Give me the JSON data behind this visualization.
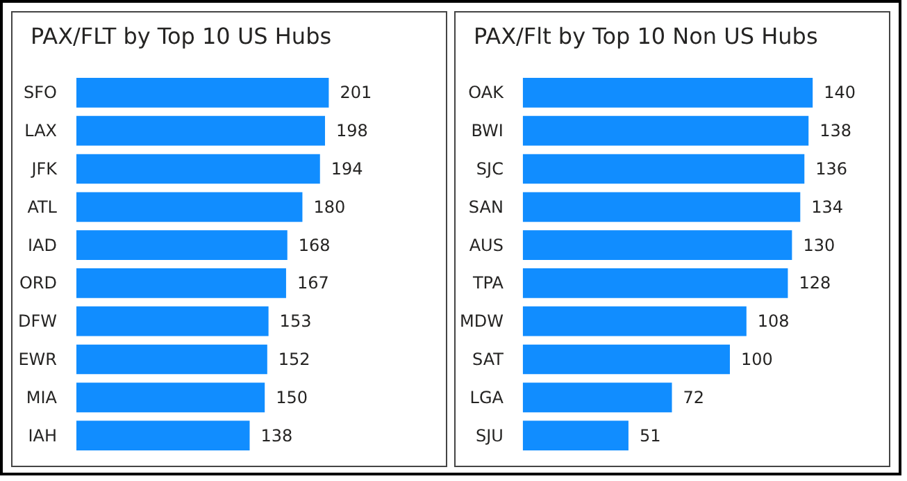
{
  "chart_data": [
    {
      "type": "bar",
      "orientation": "horizontal",
      "title": "PAX/FLT by Top 10 US Hubs",
      "categories": [
        "SFO",
        "LAX",
        "JFK",
        "ATL",
        "IAD",
        "ORD",
        "DFW",
        "EWR",
        "MIA",
        "IAH"
      ],
      "values": [
        201,
        198,
        194,
        180,
        168,
        167,
        153,
        152,
        150,
        138
      ],
      "color": "#118dff",
      "data_labels": true
    },
    {
      "type": "bar",
      "orientation": "horizontal",
      "title": "PAX/Flt by Top 10 Non US Hubs",
      "categories": [
        "OAK",
        "BWI",
        "SJC",
        "SAN",
        "AUS",
        "TPA",
        "MDW",
        "SAT",
        "LGA",
        "SJU"
      ],
      "values": [
        140,
        138,
        136,
        134,
        130,
        128,
        108,
        100,
        72,
        51
      ],
      "color": "#118dff",
      "data_labels": true
    }
  ]
}
